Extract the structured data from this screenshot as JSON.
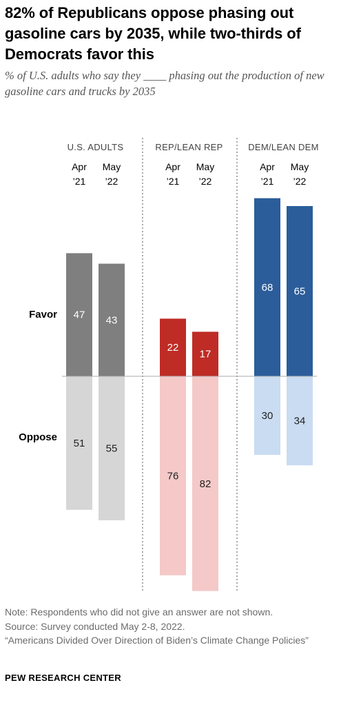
{
  "title": "82% of Republicans oppose phasing out gasoline cars by 2035, while two-thirds of Democrats favor this",
  "subtitle": "% of U.S. adults who say they ____ phasing out the production of new gasoline cars and trucks by 2035",
  "notes": [
    "Note: Respondents who did not give an answer are not shown.",
    "Source: Survey conducted May 2-8, 2022.",
    "“Americans Divided Over Direction of Biden’s Climate Change Policies”"
  ],
  "org": "PEW RESEARCH CENTER",
  "chart_data": {
    "type": "bar",
    "row_labels": {
      "favor": "Favor",
      "oppose": "Oppose"
    },
    "groups": [
      {
        "name": "U.S. ADULTS",
        "colors": {
          "favor": "#7f7f7f",
          "oppose": "#d6d6d6"
        },
        "bars": [
          {
            "period": [
              "Apr",
              "’21"
            ],
            "favor": 47,
            "oppose": 51
          },
          {
            "period": [
              "May",
              "’22"
            ],
            "favor": 43,
            "oppose": 55
          }
        ]
      },
      {
        "name": "REP/LEAN REP",
        "colors": {
          "favor": "#be2c25",
          "oppose": "#f4c9c8"
        },
        "bars": [
          {
            "period": [
              "Apr",
              "’21"
            ],
            "favor": 22,
            "oppose": 76
          },
          {
            "period": [
              "May",
              "’22"
            ],
            "favor": 17,
            "oppose": 82
          }
        ]
      },
      {
        "name": "DEM/LEAN DEM",
        "colors": {
          "favor": "#2b5d9b",
          "oppose": "#c9dcf1"
        },
        "bars": [
          {
            "period": [
              "Apr",
              "’21"
            ],
            "favor": 68,
            "oppose": 30
          },
          {
            "period": [
              "May",
              "’22"
            ],
            "favor": 65,
            "oppose": 34
          }
        ]
      }
    ]
  }
}
